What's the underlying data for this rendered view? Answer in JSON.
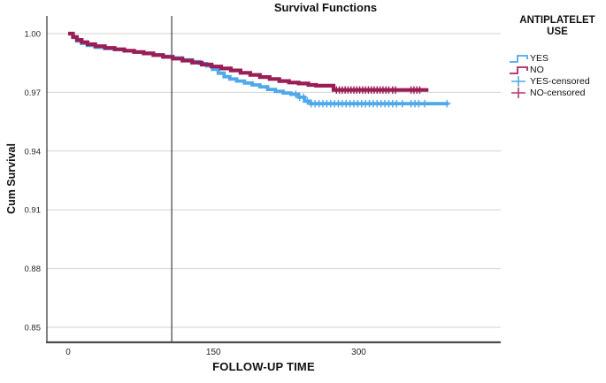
{
  "window": {
    "background": "#ffffff"
  },
  "chart_data": {
    "type": "line",
    "subtype": "kaplan-meier-step-survival",
    "title": "Survival Functions",
    "xlabel": "FOLLOW-UP TIME",
    "ylabel": "Cum Survival",
    "x_ticks": {
      "values": [
        0,
        150,
        300
      ],
      "labels": [
        "0",
        "150",
        "300"
      ]
    },
    "y_ticks": {
      "values": [
        1.0,
        0.97,
        0.94,
        0.91,
        0.88,
        0.85
      ],
      "labels": [
        "1.00",
        "0.97",
        "0.94",
        "0.91",
        "0.88",
        "0.85"
      ]
    },
    "xlim": [
      -22,
      449
    ],
    "ylim": [
      0.842,
      1.009
    ],
    "grid": "horizontal",
    "reference_line_x": 107,
    "axis_colors": {
      "axis": "#4d4d4d",
      "grid": "#d2d2d2",
      "reference_line": "#5a5a5a",
      "tick_text": "#262626"
    },
    "legend": {
      "position": "right",
      "title_lines": [
        "ANTIPLATELET",
        "USE"
      ],
      "entries": [
        {
          "label": "YES",
          "glyph": "step",
          "color": "#4FA8EA"
        },
        {
          "label": "NO",
          "glyph": "step",
          "color": "#A8295E"
        },
        {
          "label": "YES-censored",
          "glyph": "plus",
          "color": "#4FA8EA"
        },
        {
          "label": "NO-censored",
          "glyph": "plus",
          "color": "#B23A6E"
        }
      ]
    },
    "series": [
      {
        "name": "YES",
        "color": "#4FA8EA",
        "end_t": 393,
        "steps": [
          [
            0,
            1.0
          ],
          [
            5,
            0.998
          ],
          [
            9,
            0.9962
          ],
          [
            14,
            0.995
          ],
          [
            20,
            0.994
          ],
          [
            28,
            0.993
          ],
          [
            38,
            0.9924
          ],
          [
            48,
            0.9918
          ],
          [
            58,
            0.9912
          ],
          [
            68,
            0.9906
          ],
          [
            78,
            0.99
          ],
          [
            88,
            0.9892
          ],
          [
            98,
            0.9884
          ],
          [
            108,
            0.9876
          ],
          [
            118,
            0.9866
          ],
          [
            128,
            0.9857
          ],
          [
            136,
            0.9847
          ],
          [
            143,
            0.9835
          ],
          [
            149,
            0.9818
          ],
          [
            155,
            0.9798
          ],
          [
            161,
            0.978
          ],
          [
            167,
            0.9768
          ],
          [
            174,
            0.9758
          ],
          [
            182,
            0.9748
          ],
          [
            190,
            0.9738
          ],
          [
            198,
            0.9728
          ],
          [
            206,
            0.9715
          ],
          [
            214,
            0.9705
          ],
          [
            222,
            0.9697
          ],
          [
            230,
            0.969
          ],
          [
            238,
            0.9675
          ],
          [
            244,
            0.9655
          ],
          [
            250,
            0.9642
          ]
        ],
        "censored_t": [
          235,
          239,
          243,
          247,
          251,
          255,
          259,
          263,
          267,
          271,
          275,
          279,
          283,
          287,
          291,
          295,
          299,
          303,
          307,
          311,
          315,
          319,
          323,
          327,
          331,
          335,
          339,
          345,
          354,
          358,
          362,
          368,
          391
        ]
      },
      {
        "name": "NO",
        "color": "#9B1D55",
        "end_t": 372,
        "steps": [
          [
            0,
            1.0
          ],
          [
            5,
            0.9983
          ],
          [
            9,
            0.9968
          ],
          [
            14,
            0.9956
          ],
          [
            20,
            0.9946
          ],
          [
            28,
            0.9936
          ],
          [
            38,
            0.9927
          ],
          [
            48,
            0.992
          ],
          [
            58,
            0.9913
          ],
          [
            68,
            0.9906
          ],
          [
            78,
            0.9899
          ],
          [
            88,
            0.989
          ],
          [
            98,
            0.9881
          ],
          [
            108,
            0.9872
          ],
          [
            118,
            0.9862
          ],
          [
            128,
            0.9852
          ],
          [
            138,
            0.9842
          ],
          [
            148,
            0.9832
          ],
          [
            158,
            0.9822
          ],
          [
            168,
            0.9812
          ],
          [
            178,
            0.98
          ],
          [
            188,
            0.9789
          ],
          [
            198,
            0.9778
          ],
          [
            208,
            0.9768
          ],
          [
            218,
            0.9758
          ],
          [
            228,
            0.975
          ],
          [
            238,
            0.9745
          ],
          [
            248,
            0.9738
          ],
          [
            256,
            0.9734
          ],
          [
            274,
            0.9712
          ]
        ],
        "censored_t": [
          277,
          280,
          283,
          286,
          289,
          292,
          295,
          298,
          301,
          304,
          307,
          310,
          313,
          316,
          319,
          322,
          325,
          328,
          331,
          335,
          338,
          354,
          357,
          360,
          363
        ]
      }
    ]
  }
}
